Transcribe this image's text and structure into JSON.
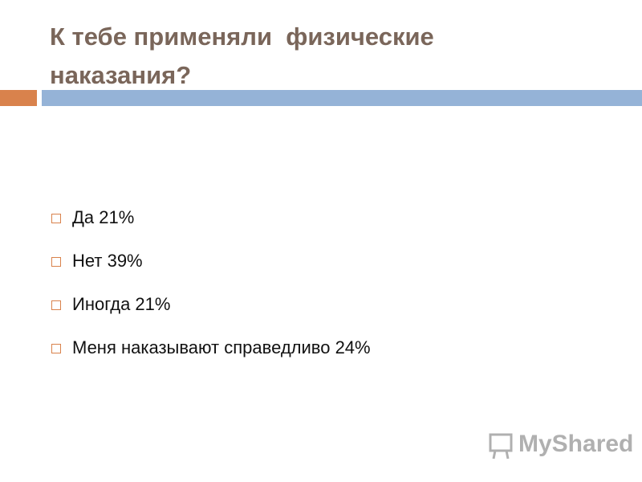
{
  "slide": {
    "title": "К тебе применяли  физические наказания?",
    "items": [
      "Да 21%",
      "Нет 39%",
      "Иногда 21%",
      "Меня наказывают справедливо 24%"
    ]
  },
  "watermark": "MyShared"
}
